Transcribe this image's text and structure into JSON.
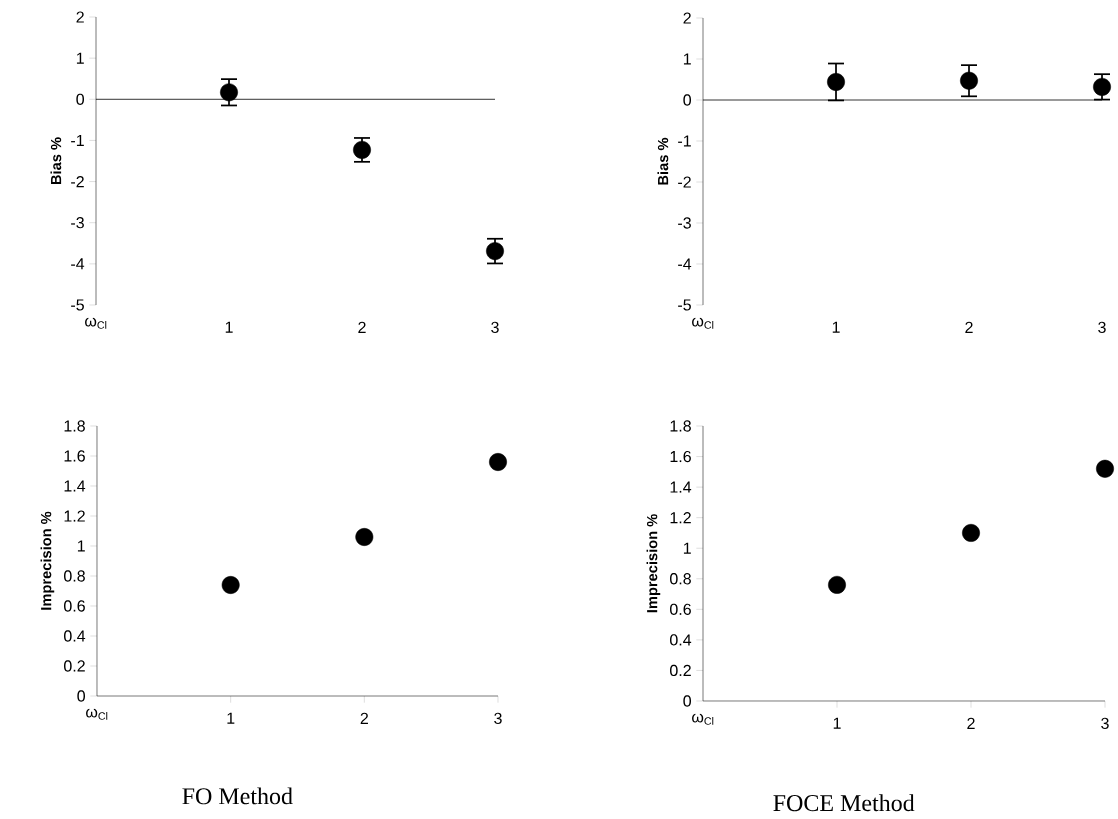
{
  "chart_data": [
    {
      "type": "scatter",
      "ylabel": "Bias %",
      "xlabel": "ω$_{Cl}$",
      "x": [
        1,
        2,
        3
      ],
      "values": [
        0.17,
        -1.23,
        -3.69
      ],
      "errors": [
        0.32,
        0.29,
        0.3
      ],
      "color": "#000000",
      "marker": "circle",
      "xlim": [
        0,
        3
      ],
      "xticks": [
        1,
        2,
        3
      ],
      "ylim": [
        -5,
        2
      ],
      "yticks": [
        -5,
        -4,
        -3,
        -2,
        -1,
        0,
        1,
        2
      ],
      "ref_lines": [
        {
          "axis": "y",
          "value": 0
        }
      ]
    },
    {
      "type": "scatter",
      "ylabel": "Bias %",
      "xlabel": "ω$_{Cl}$",
      "x": [
        1,
        2,
        3
      ],
      "values": [
        0.44,
        0.47,
        0.32
      ],
      "errors": [
        0.45,
        0.38,
        0.31
      ],
      "color": "#000000",
      "marker": "circle",
      "xlim": [
        0,
        3
      ],
      "xticks": [
        1,
        2,
        3
      ],
      "ylim": [
        -5,
        2
      ],
      "yticks": [
        -5,
        -4,
        -3,
        -2,
        -1,
        0,
        1,
        2
      ],
      "ref_lines": [
        {
          "axis": "y",
          "value": 0
        }
      ]
    },
    {
      "type": "scatter",
      "ylabel": "Imprecision %",
      "xlabel": "ω$_{Cl}$",
      "x": [
        1,
        2,
        3
      ],
      "values": [
        0.74,
        1.06,
        1.56
      ],
      "color": "#000000",
      "marker": "circle",
      "xlim": [
        0,
        3
      ],
      "xticks": [
        1,
        2,
        3
      ],
      "ylim": [
        0,
        1.8
      ],
      "yticks": [
        0,
        0.2,
        0.4,
        0.6,
        0.8,
        1,
        1.2,
        1.4,
        1.6,
        1.8
      ],
      "annotations": [
        "FO Method"
      ]
    },
    {
      "type": "scatter",
      "ylabel": "Imprecision %",
      "xlabel": "ω$_{Cl}$",
      "x": [
        1,
        2,
        3
      ],
      "values": [
        0.76,
        1.1,
        1.52
      ],
      "color": "#000000",
      "marker": "circle",
      "xlim": [
        0,
        3
      ],
      "xticks": [
        1,
        2,
        3
      ],
      "ylim": [
        0,
        1.8
      ],
      "yticks": [
        0,
        0.2,
        0.4,
        0.6,
        0.8,
        1,
        1.2,
        1.4,
        1.6,
        1.8
      ],
      "annotations": [
        "FOCE Method"
      ]
    }
  ]
}
